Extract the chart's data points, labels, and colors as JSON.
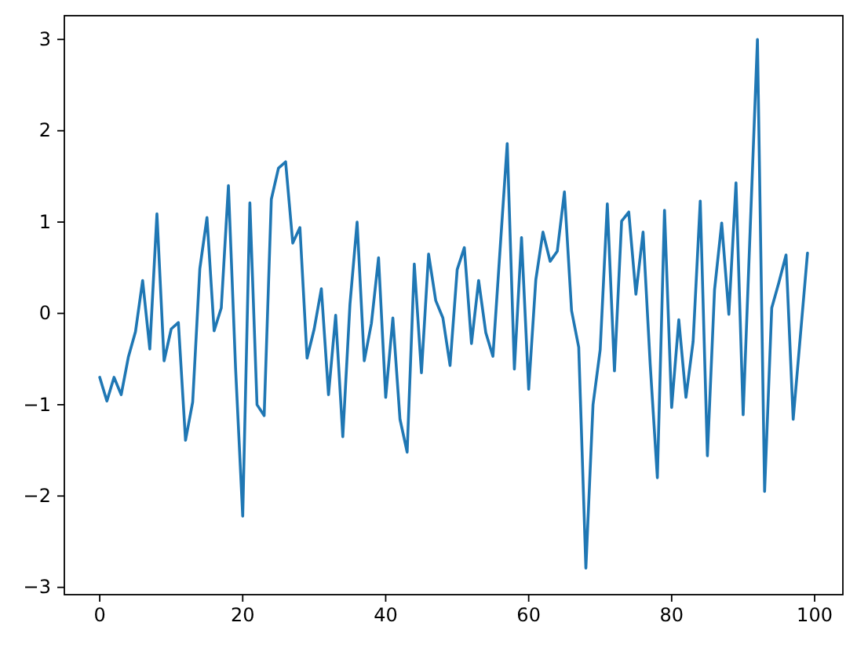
{
  "chart_data": {
    "type": "line",
    "x": [
      0,
      1,
      2,
      3,
      4,
      5,
      6,
      7,
      8,
      9,
      10,
      11,
      12,
      13,
      14,
      15,
      16,
      17,
      18,
      19,
      20,
      21,
      22,
      23,
      24,
      25,
      26,
      27,
      28,
      29,
      30,
      31,
      32,
      33,
      34,
      35,
      36,
      37,
      38,
      39,
      40,
      41,
      42,
      43,
      44,
      45,
      46,
      47,
      48,
      49,
      50,
      51,
      52,
      53,
      54,
      55,
      56,
      57,
      58,
      59,
      60,
      61,
      62,
      63,
      64,
      65,
      66,
      67,
      68,
      69,
      70,
      71,
      72,
      73,
      74,
      75,
      76,
      77,
      78,
      79,
      80,
      81,
      82,
      83,
      84,
      85,
      86,
      87,
      88,
      89,
      90,
      91,
      92,
      93,
      94,
      95,
      96,
      97,
      98,
      99
    ],
    "values": [
      -0.7,
      -0.96,
      -0.7,
      -0.89,
      -0.48,
      -0.2,
      0.36,
      -0.39,
      1.09,
      -0.52,
      -0.17,
      -0.1,
      -1.39,
      -0.97,
      0.49,
      1.05,
      -0.19,
      0.06,
      1.4,
      -0.6,
      -2.22,
      1.21,
      -1.0,
      -1.12,
      1.25,
      1.59,
      1.66,
      0.77,
      0.94,
      -0.49,
      -0.17,
      0.27,
      -0.89,
      -0.02,
      -1.35,
      0.1,
      1.0,
      -0.52,
      -0.11,
      0.61,
      -0.92,
      -0.05,
      -1.16,
      -1.52,
      0.54,
      -0.65,
      0.65,
      0.14,
      -0.05,
      -0.57,
      0.48,
      0.72,
      -0.33,
      0.36,
      -0.21,
      -0.47,
      0.7,
      1.86,
      -0.61,
      0.83,
      -0.83,
      0.37,
      0.89,
      0.57,
      0.68,
      1.33,
      0.03,
      -0.37,
      -2.79,
      -1.0,
      -0.4,
      1.2,
      -0.63,
      1.01,
      1.11,
      0.21,
      0.89,
      -0.56,
      -1.8,
      1.13,
      -1.03,
      -0.07,
      -0.92,
      -0.31,
      1.23,
      -1.56,
      0.26,
      0.99,
      -0.01,
      1.43,
      -1.11,
      0.95,
      3.0,
      -1.95,
      0.06,
      0.34,
      0.64,
      -1.16,
      -0.25,
      0.66
    ],
    "color": "#1f77b4",
    "xlim": [
      -4.95,
      103.95
    ],
    "ylim": [
      -3.08,
      3.26
    ],
    "xticks": [
      0,
      20,
      40,
      60,
      80,
      100
    ],
    "yticks": [
      {
        "value": -3,
        "label": "−3"
      },
      {
        "value": -2,
        "label": "−2"
      },
      {
        "value": -1,
        "label": "−1"
      },
      0,
      1,
      2,
      3
    ]
  }
}
